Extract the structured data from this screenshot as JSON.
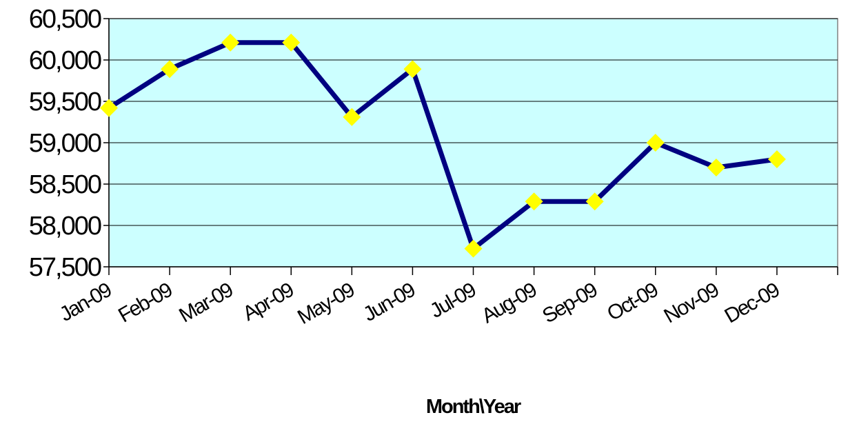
{
  "chart_data": {
    "type": "line",
    "title": "",
    "xlabel": "Month\\Year",
    "ylabel": "",
    "categories": [
      "Jan-09",
      "Feb-09",
      "Mar-09",
      "Apr-09",
      "May-09",
      "Jun-09",
      "Jul-09",
      "Aug-09",
      "Sep-09",
      "Oct-09",
      "Nov-09",
      "Dec-09"
    ],
    "series": [
      {
        "values": [
          59420,
          59890,
          60210,
          60210,
          59310,
          59890,
          57720,
          58290,
          58290,
          59000,
          58700,
          58800
        ]
      }
    ],
    "ylim": [
      57500,
      60500
    ],
    "yticks": [
      57500,
      58000,
      58500,
      59000,
      59500,
      60000,
      60500
    ],
    "ytick_labels": [
      "57,500",
      "58,000",
      "58,500",
      "59,000",
      "59,500",
      "60,000",
      "60,500"
    ],
    "grid": true,
    "legend": "none",
    "colors": {
      "plot_background": "#ccffff",
      "line": "#000080",
      "marker": "#ffff00",
      "gridline": "#000000"
    }
  }
}
